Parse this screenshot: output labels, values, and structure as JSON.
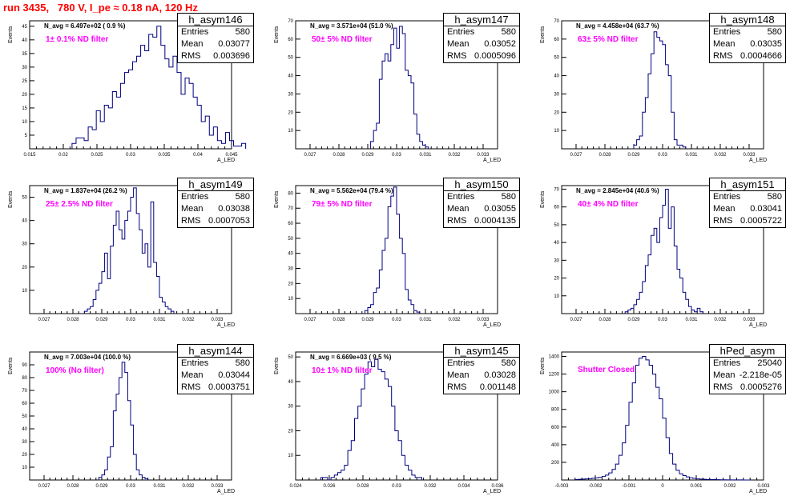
{
  "title": "run 3435,   780 V, I_pe ≈ 0.18 nA, 120 Hz",
  "colors": {
    "title": "#ff0000",
    "annotation": "#ff00ff",
    "histogram": "#000080"
  },
  "stats_labels": {
    "entries": "Entries",
    "mean": "Mean",
    "rms": "RMS"
  },
  "chart_data": [
    {
      "type": "histogram",
      "name": "h_asym146",
      "entries": "580",
      "mean": "0.03077",
      "rms": "0.003696",
      "navg": "N_avg = 6.497e+02 ( 0.9 %)",
      "annotation": "1± 0.1% ND filter",
      "xlabel": "A_LED",
      "ylabel": "Events",
      "xlim": [
        0.015,
        0.045
      ],
      "ylim": [
        0,
        47
      ],
      "xticks": [
        "0.015",
        "0.02",
        "0.025",
        "0.03",
        "0.035",
        "0.04",
        "0.045"
      ],
      "yticks": [
        "5",
        "10",
        "15",
        "20",
        "25",
        "30",
        "35",
        "40",
        "45"
      ],
      "x_start": 0.0213,
      "bin_width": 0.0006,
      "values": [
        2,
        4,
        4,
        3,
        8,
        7,
        14,
        10,
        16,
        15,
        21,
        19,
        24,
        28,
        29,
        32,
        34,
        38,
        36,
        42,
        41,
        45,
        38,
        33,
        30,
        34,
        28,
        20,
        26,
        24,
        19,
        16,
        10,
        12,
        5,
        8,
        3,
        2,
        6,
        3,
        1,
        1,
        2
      ]
    },
    {
      "type": "histogram",
      "name": "h_asym147",
      "entries": "580",
      "mean": "0.03052",
      "rms": "0.0005096",
      "navg": "N_avg = 3.571e+04 (51.0 %)",
      "annotation": "50± 5% ND filter",
      "xlabel": "A_LED",
      "ylabel": "Events",
      "xlim": [
        0.0265,
        0.0335
      ],
      "ylim": [
        0,
        70
      ],
      "xticks": [
        "0.027",
        "0.028",
        "0.029",
        "0.03",
        "0.031",
        "0.032",
        "0.033"
      ],
      "yticks": [
        "10",
        "20",
        "30",
        "40",
        "50",
        "60",
        "70"
      ],
      "x_start": 0.0291,
      "bin_width": 0.0001,
      "values": [
        4,
        10,
        14,
        38,
        48,
        52,
        48,
        57,
        66,
        55,
        67,
        63,
        43,
        40,
        36,
        19,
        8,
        4,
        2,
        1
      ]
    },
    {
      "type": "histogram",
      "name": "h_asym148",
      "entries": "580",
      "mean": "0.03035",
      "rms": "0.0004666",
      "navg": "N_avg = 4.458e+04 (63.7 %)",
      "annotation": "63± 5% ND filter",
      "xlabel": "A_LED",
      "ylabel": "Events",
      "xlim": [
        0.0265,
        0.0335
      ],
      "ylim": [
        0,
        70
      ],
      "xticks": [
        "0.027",
        "0.028",
        "0.029",
        "0.03",
        "0.031",
        "0.032",
        "0.033"
      ],
      "yticks": [
        "10",
        "20",
        "30",
        "40",
        "50",
        "60",
        "70"
      ],
      "x_start": 0.029,
      "bin_width": 0.0001,
      "values": [
        2,
        5,
        7,
        20,
        28,
        41,
        52,
        64,
        61,
        59,
        57,
        46,
        40,
        20,
        5,
        2,
        2,
        1
      ]
    },
    {
      "type": "histogram",
      "name": "h_asym149",
      "entries": "580",
      "mean": "0.03038",
      "rms": "0.0007053",
      "navg": "N_avg = 1.837e+04 (26.2 %)",
      "annotation": "25± 2.5% ND filter",
      "xlabel": "A_LED",
      "ylabel": "Events",
      "xlim": [
        0.0265,
        0.0335
      ],
      "ylim": [
        0,
        55
      ],
      "xticks": [
        "0.027",
        "0.028",
        "0.029",
        "0.03",
        "0.031",
        "0.032",
        "0.033"
      ],
      "yticks": [
        "10",
        "20",
        "30",
        "40",
        "50"
      ],
      "x_start": 0.0284,
      "bin_width": 0.0001,
      "values": [
        1,
        2,
        3,
        6,
        10,
        13,
        18,
        26,
        15,
        29,
        38,
        44,
        36,
        32,
        40,
        44,
        50,
        54,
        43,
        36,
        26,
        30,
        20,
        48,
        22,
        16,
        7,
        5,
        3,
        2,
        1
      ]
    },
    {
      "type": "histogram",
      "name": "h_asym150",
      "entries": "580",
      "mean": "0.03055",
      "rms": "0.0004135",
      "navg": "N_avg = 5.562e+04 (79.4 %)",
      "annotation": "79± 5% ND filter",
      "xlabel": "A_LED",
      "ylabel": "Events",
      "xlim": [
        0.0265,
        0.0335
      ],
      "ylim": [
        0,
        85
      ],
      "xticks": [
        "0.027",
        "0.028",
        "0.029",
        "0.03",
        "0.031",
        "0.032",
        "0.033"
      ],
      "yticks": [
        "10",
        "20",
        "30",
        "40",
        "50",
        "60",
        "70",
        "80"
      ],
      "x_start": 0.0289,
      "bin_width": 0.0001,
      "values": [
        2,
        4,
        6,
        14,
        17,
        29,
        42,
        50,
        71,
        78,
        84,
        66,
        50,
        40,
        16,
        9,
        6,
        2,
        1
      ]
    },
    {
      "type": "histogram",
      "name": "h_asym151",
      "entries": "580",
      "mean": "0.03041",
      "rms": "0.0005722",
      "navg": "N_avg = 2.845e+04 (40.6 %)",
      "annotation": "40± 4% ND filter",
      "xlabel": "A_LED",
      "ylabel": "Events",
      "xlim": [
        0.0265,
        0.0335
      ],
      "ylim": [
        0,
        72
      ],
      "xticks": [
        "0.027",
        "0.028",
        "0.029",
        "0.03",
        "0.031",
        "0.032",
        "0.033"
      ],
      "yticks": [
        "10",
        "20",
        "30",
        "40",
        "50",
        "60",
        "70"
      ],
      "x_start": 0.0287,
      "bin_width": 0.0001,
      "values": [
        1,
        2,
        3,
        5,
        8,
        12,
        18,
        27,
        33,
        44,
        48,
        40,
        54,
        61,
        70,
        48,
        60,
        38,
        25,
        20,
        12,
        8,
        4,
        2,
        1,
        3,
        1
      ]
    },
    {
      "type": "histogram",
      "name": "h_asym144",
      "entries": "580",
      "mean": "0.03044",
      "rms": "0.0003751",
      "navg": "N_avg = 7.003e+04 (100.0 %)",
      "annotation": "100% (No filter)",
      "xlabel": "A_LED",
      "ylabel": "Events",
      "xlim": [
        0.0265,
        0.0335
      ],
      "ylim": [
        0,
        100
      ],
      "xticks": [
        "0.027",
        "0.028",
        "0.029",
        "0.03",
        "0.031",
        "0.032",
        "0.033"
      ],
      "yticks": [
        "10",
        "20",
        "30",
        "40",
        "50",
        "60",
        "70",
        "80",
        "90"
      ],
      "x_start": 0.0289,
      "bin_width": 0.0001,
      "values": [
        2,
        4,
        8,
        18,
        26,
        54,
        67,
        80,
        92,
        84,
        62,
        43,
        20,
        8,
        4,
        2,
        1
      ]
    },
    {
      "type": "histogram",
      "name": "h_asym145",
      "entries": "580",
      "mean": "0.03028",
      "rms": "0.001148",
      "navg": "N_avg = 6.669e+03 ( 9.5 %)",
      "annotation": "10± 1% ND filter",
      "xlabel": "A_LED",
      "ylabel": "Events",
      "xlim": [
        0.024,
        0.036
      ],
      "ylim": [
        0,
        52
      ],
      "xticks": [
        "0.024",
        "0.026",
        "0.028",
        "0.03",
        "0.032",
        "0.034",
        "0.036"
      ],
      "yticks": [
        "10",
        "20",
        "30",
        "40",
        "50"
      ],
      "x_start": 0.0255,
      "bin_width": 0.0002,
      "values": [
        1,
        1,
        0,
        1,
        2,
        3,
        4,
        6,
        12,
        16,
        25,
        30,
        37,
        43,
        48,
        46,
        49,
        45,
        44,
        41,
        38,
        30,
        20,
        16,
        10,
        6,
        4,
        2,
        1,
        1
      ]
    },
    {
      "type": "histogram",
      "name": "hPed_asym",
      "entries": "25040",
      "mean": "-2.218e-05",
      "rms": "0.0005276",
      "navg": "",
      "annotation": "Shutter Closed",
      "xlabel": "A_LED",
      "ylabel": "Events",
      "xlim": [
        -0.003,
        0.003
      ],
      "ylim": [
        0,
        1450
      ],
      "xticks": [
        "-0.003",
        "-0.002",
        "-0.001",
        "0",
        "0.001",
        "0.002",
        "0.003"
      ],
      "yticks": [
        "200",
        "400",
        "600",
        "800",
        "1000",
        "1200",
        "1400"
      ],
      "x_start": -0.0026,
      "bin_width": 0.0001,
      "values": [
        5,
        8,
        10,
        12,
        15,
        20,
        25,
        30,
        40,
        55,
        80,
        120,
        180,
        280,
        420,
        620,
        880,
        1100,
        1300,
        1380,
        1400,
        1360,
        1300,
        1200,
        1050,
        920,
        700,
        480,
        300,
        180,
        110,
        70,
        50,
        35,
        25,
        18,
        12,
        10,
        8,
        6,
        5,
        4,
        3,
        2,
        2,
        1,
        1,
        1,
        1,
        1,
        0,
        0
      ]
    }
  ]
}
